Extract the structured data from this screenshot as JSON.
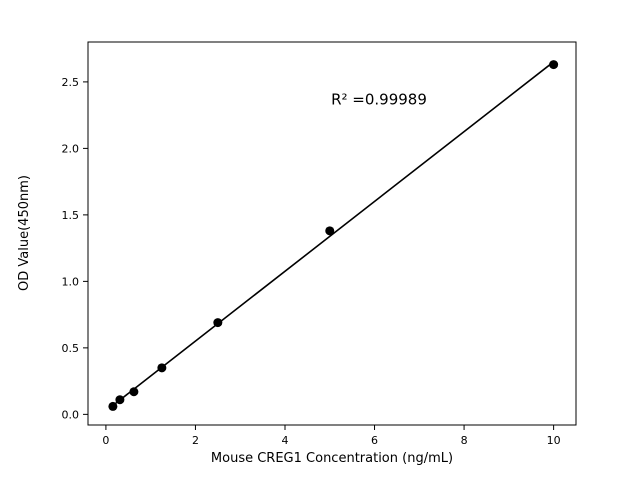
{
  "chart_data": {
    "type": "scatter",
    "title": "",
    "xlabel": "Mouse CREG1 Concentration (ng/mL)",
    "ylabel": "OD Value(450nm)",
    "annotation": "R² =0.99989",
    "annotation_xy": [
      6.1,
      2.33
    ],
    "x": [
      0.156,
      0.3125,
      0.625,
      1.25,
      2.5,
      5,
      10
    ],
    "y": [
      0.06,
      0.11,
      0.17,
      0.35,
      0.69,
      1.38,
      2.63
    ],
    "fit": "linear",
    "marker_color": "#000000",
    "line_color": "#000000",
    "background_color": "#ffffff",
    "xlim": [
      -0.4,
      10.5
    ],
    "ylim": [
      -0.08,
      2.8
    ],
    "xticks": [
      0,
      2,
      4,
      6,
      8,
      10
    ],
    "xtick_labels": [
      "0",
      "2",
      "4",
      "6",
      "8",
      "10"
    ],
    "yticks": [
      0,
      0.5,
      1.0,
      1.5,
      2.0,
      2.5
    ],
    "ytick_labels": [
      "0.0",
      "0.5",
      "1.0",
      "1.5",
      "2.0",
      "2.5"
    ],
    "grid": false,
    "legend": null
  }
}
